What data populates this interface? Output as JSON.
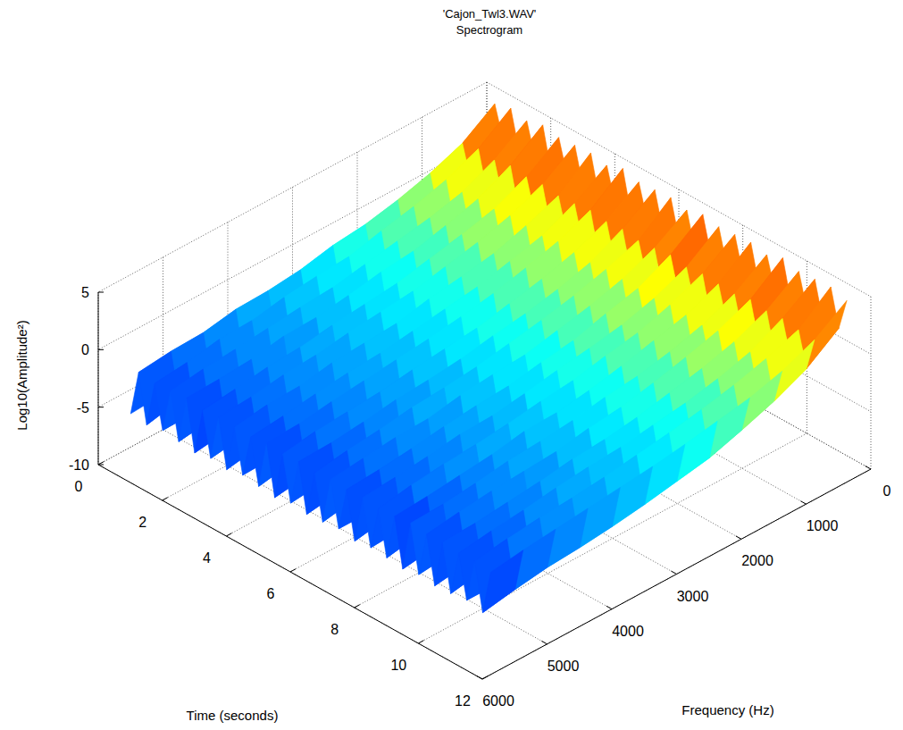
{
  "chart_data": {
    "type": "surface",
    "title": "'Cajon_Twl3.WAV'",
    "subtitle": "Spectrogram",
    "x_label": "Frequency (Hz)",
    "y_label": "Time (seconds)",
    "z_label": "Log10(Amplitude²)",
    "xlim": [
      0,
      6000
    ],
    "xticks": [
      0,
      1000,
      2000,
      3000,
      4000,
      5000,
      6000
    ],
    "ylim": [
      0,
      12
    ],
    "yticks": [
      0,
      2,
      4,
      6,
      8,
      10,
      12
    ],
    "zlim": [
      -10,
      5
    ],
    "zticks": [
      -10,
      -5,
      0,
      5
    ],
    "grid": true,
    "x": [
      0,
      500,
      1000,
      1500,
      2000,
      2500,
      3000,
      3500,
      4000,
      4500,
      5000,
      5500
    ],
    "y": [
      0,
      0.25,
      0.5,
      0.75,
      1,
      1.25,
      1.5,
      1.75,
      2,
      2.25,
      2.5,
      2.75,
      3,
      3.25,
      3.5,
      3.75,
      4,
      4.25,
      4.5,
      4.75,
      5,
      5.25,
      5.5,
      5.75,
      6,
      6.25,
      6.5,
      6.75,
      7,
      7.25,
      7.5,
      7.75,
      8,
      8.25,
      8.5,
      8.75,
      9,
      9.25,
      9.5,
      9.75,
      10,
      10.25,
      10.5,
      10.75,
      11,
      11.25
    ],
    "z": [
      [
        0.6,
        -1.4,
        -2.8,
        -3.5,
        -4.6,
        -5.1,
        -5.4,
        -6.0,
        -6.3,
        -6.4,
        -6.9,
        -7.1
      ],
      [
        3.5,
        1.6,
        0.5,
        -0.3,
        -0.9,
        -1.2,
        -1.8,
        -2.1,
        -2.2,
        -2.7,
        -2.8,
        -3.1
      ],
      [
        0.9,
        -1.1,
        -2.5,
        -3.7,
        -4.3,
        -4.9,
        -5.6,
        -5.8,
        -6.1,
        -6.6,
        -6.7,
        -7.3
      ],
      [
        3.9,
        1.9,
        0.7,
        -0.1,
        -0.7,
        -1.4,
        -1.6,
        -1.9,
        -2.4,
        -2.5,
        -3.0,
        -3.3
      ],
      [
        0.7,
        -1.3,
        -2.7,
        -3.5,
        -4.5,
        -5.0,
        -5.4,
        -6.0,
        -6.3,
        -6.4,
        -6.9,
        -7.0
      ],
      [
        3.6,
        1.7,
        0.4,
        -0.3,
        -0.8,
        -1.3,
        -1.8,
        -2.0,
        -2.3,
        -2.6,
        -2.8,
        -3.2
      ],
      [
        0.8,
        -1.2,
        -2.6,
        -3.6,
        -4.4,
        -5.1,
        -5.5,
        -5.9,
        -6.2,
        -6.5,
        -6.8,
        -7.2
      ],
      [
        4.0,
        2.0,
        0.6,
        -0.2,
        -0.9,
        -1.2,
        -1.7,
        -2.1,
        -2.2,
        -2.7,
        -2.9,
        -3.0
      ],
      [
        0.5,
        -1.4,
        -2.8,
        -3.8,
        -4.6,
        -5.2,
        -5.3,
        -6.1,
        -6.4,
        -6.3,
        -7.0,
        -7.4
      ],
      [
        3.7,
        1.8,
        0.5,
        -0.2,
        -0.8,
        -1.4,
        -1.7,
        -2.0,
        -2.4,
        -2.6,
        -3.0,
        -3.3
      ],
      [
        0.9,
        -1.0,
        -2.4,
        -3.5,
        -4.3,
        -4.9,
        -5.6,
        -5.8,
        -6.0,
        -6.6,
        -6.7,
        -7.1
      ],
      [
        3.8,
        1.9,
        0.7,
        -0.1,
        -0.7,
        -1.3,
        -1.6,
        -1.9,
        -2.3,
        -2.5,
        -2.9,
        -3.1
      ],
      [
        0.7,
        -1.3,
        -2.5,
        -3.7,
        -4.5,
        -5.0,
        -5.5,
        -6.0,
        -6.2,
        -6.5,
        -6.8,
        -7.3
      ],
      [
        3.9,
        1.7,
        0.6,
        -0.3,
        -0.8,
        -1.2,
        -1.8,
        -2.0,
        -2.2,
        -2.7,
        -2.8,
        -3.2
      ],
      [
        0.6,
        -1.2,
        -2.7,
        -3.6,
        -4.4,
        -5.1,
        -5.4,
        -5.9,
        -6.3,
        -6.4,
        -6.9,
        -7.0
      ],
      [
        3.6,
        1.8,
        0.5,
        -0.2,
        -0.9,
        -1.3,
        -1.7,
        -2.1,
        -2.3,
        -2.6,
        -3.0,
        -3.3
      ],
      [
        0.8,
        -1.1,
        -2.6,
        -3.5,
        -4.5,
        -5.0,
        -5.6,
        -5.8,
        -6.1,
        -6.5,
        -6.7,
        -7.2
      ],
      [
        4.1,
        2.0,
        0.8,
        0.0,
        -0.7,
        -1.2,
        -1.6,
        -1.9,
        -2.2,
        -2.5,
        -2.9,
        -3.0
      ],
      [
        0.6,
        -1.4,
        -2.8,
        -3.7,
        -4.6,
        -5.2,
        -5.5,
        -6.0,
        -6.4,
        -6.6,
        -7.0,
        -7.4
      ],
      [
        3.7,
        1.8,
        0.6,
        -0.2,
        -0.8,
        -1.4,
        -1.7,
        -2.0,
        -2.4,
        -2.6,
        -2.8,
        -3.2
      ],
      [
        0.9,
        -1.2,
        -2.5,
        -3.6,
        -4.3,
        -4.9,
        -5.4,
        -5.9,
        -6.2,
        -6.4,
        -6.8,
        -7.1
      ],
      [
        3.8,
        1.9,
        0.5,
        -0.3,
        -0.9,
        -1.3,
        -1.8,
        -2.1,
        -2.3,
        -2.7,
        -3.0,
        -3.1
      ],
      [
        0.7,
        -1.3,
        -2.7,
        -3.5,
        -4.5,
        -5.1,
        -5.5,
        -6.0,
        -6.3,
        -6.5,
        -6.9,
        -7.3
      ],
      [
        3.9,
        1.7,
        0.7,
        -0.1,
        -0.7,
        -1.2,
        -1.7,
        -2.0,
        -2.2,
        -2.6,
        -2.9,
        -3.3
      ],
      [
        0.8,
        -1.1,
        -2.6,
        -3.7,
        -4.4,
        -5.0,
        -5.6,
        -5.8,
        -6.1,
        -6.6,
        -6.7,
        -7.2
      ],
      [
        3.6,
        1.8,
        0.6,
        -0.2,
        -0.8,
        -1.4,
        -1.6,
        -1.9,
        -2.4,
        -2.5,
        -2.8,
        -3.1
      ],
      [
        0.6,
        -1.3,
        -2.8,
        -3.6,
        -4.6,
        -5.1,
        -5.4,
        -6.1,
        -6.3,
        -6.4,
        -7.0,
        -7.0
      ],
      [
        4.0,
        2.0,
        0.6,
        -0.1,
        -0.9,
        -1.3,
        -1.8,
        -2.0,
        -2.3,
        -2.7,
        -3.0,
        -3.2
      ],
      [
        0.9,
        -1.0,
        -2.5,
        -3.5,
        -4.3,
        -5.0,
        -5.5,
        -5.9,
        -6.2,
        -6.5,
        -6.8,
        -7.3
      ],
      [
        3.7,
        1.7,
        0.5,
        -0.3,
        -0.8,
        -1.2,
        -1.7,
        -2.1,
        -2.2,
        -2.6,
        -2.9,
        -3.1
      ],
      [
        0.7,
        -1.2,
        -2.6,
        -3.7,
        -4.5,
        -4.9,
        -5.6,
        -6.0,
        -6.4,
        -6.6,
        -6.9,
        -7.1
      ],
      [
        3.8,
        1.9,
        0.7,
        -0.2,
        -0.7,
        -1.3,
        -1.6,
        -2.0,
        -2.3,
        -2.5,
        -2.8,
        -3.3
      ],
      [
        0.8,
        -1.4,
        -2.7,
        -3.6,
        -4.4,
        -5.2,
        -5.5,
        -5.8,
        -6.1,
        -6.4,
        -6.7,
        -7.2
      ],
      [
        3.9,
        1.8,
        0.6,
        -0.1,
        -0.8,
        -1.4,
        -1.8,
        -1.9,
        -2.4,
        -2.7,
        -3.0,
        -3.2
      ],
      [
        0.6,
        -1.1,
        -2.8,
        -3.5,
        -4.6,
        -5.0,
        -5.4,
        -6.0,
        -6.3,
        -6.5,
        -7.0,
        -7.4
      ],
      [
        3.6,
        1.7,
        0.5,
        -0.3,
        -0.9,
        -1.2,
        -1.7,
        -2.0,
        -2.2,
        -2.6,
        -2.9,
        -3.0
      ],
      [
        0.9,
        -1.3,
        -2.5,
        -3.7,
        -4.3,
        -5.1,
        -5.6,
        -5.9,
        -6.2,
        -6.6,
        -6.8,
        -7.1
      ],
      [
        4.1,
        2.0,
        0.8,
        0.0,
        -0.7,
        -1.3,
        -1.6,
        -2.1,
        -2.3,
        -2.5,
        -2.8,
        -3.2
      ],
      [
        0.7,
        -1.2,
        -2.6,
        -3.6,
        -4.5,
        -4.9,
        -5.5,
        -6.1,
        -6.4,
        -6.4,
        -6.9,
        -7.3
      ],
      [
        3.7,
        1.8,
        0.6,
        -0.2,
        -0.8,
        -1.4,
        -1.8,
        -2.0,
        -2.4,
        -2.7,
        -3.0,
        -3.1
      ],
      [
        0.8,
        -1.4,
        -2.7,
        -3.5,
        -4.4,
        -5.0,
        -5.4,
        -5.8,
        -6.3,
        -6.5,
        -6.7,
        -7.2
      ],
      [
        3.8,
        1.9,
        0.5,
        -0.3,
        -0.9,
        -1.3,
        -1.7,
        -1.9,
        -2.2,
        -2.6,
        -2.9,
        -3.3
      ],
      [
        0.6,
        -1.1,
        -2.8,
        -3.7,
        -4.6,
        -5.1,
        -5.6,
        -6.0,
        -6.1,
        -6.6,
        -7.0,
        -7.0
      ],
      [
        3.9,
        1.7,
        0.7,
        -0.1,
        -0.7,
        -1.2,
        -1.6,
        -2.0,
        -2.3,
        -2.5,
        -2.8,
        -3.2
      ],
      [
        0.7,
        -1.3,
        -2.6,
        -3.6,
        -4.5,
        -5.0,
        -5.5,
        -5.9,
        -6.2,
        -6.4,
        -6.8,
        -7.3
      ],
      [
        3.5,
        1.6,
        0.4,
        -0.4,
        -0.9,
        -1.4,
        -1.8,
        -2.1,
        -2.4,
        -2.7,
        -3.0,
        -3.4
      ]
    ]
  }
}
